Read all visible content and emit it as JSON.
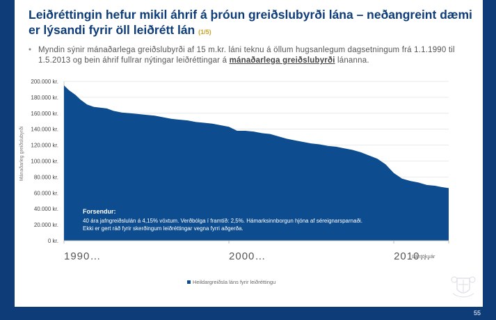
{
  "slide": {
    "title_main": "Leiðréttingin hefur mikil áhrif á þróun greiðslubyrði lána – neðangreint dæmi er lýsandi fyrir öll leiðrétt lán",
    "title_sub": "(1/5)",
    "bullet_symbol": "•",
    "bullet_pre": "Myndin sýnir mánaðarlega greiðslubyrði af 15 m.kr. láni teknu á öllum hugsanlegum dagsetningum frá 1.1.1990 til 1.5.2013 og bein áhrif fullrar nýtingar leiðréttingar á ",
    "bullet_emph": "mánaðarlega greiðslubyrði",
    "bullet_post": " lánanna.",
    "page_number": "55"
  },
  "colors": {
    "brand": "#0d3c78",
    "area": "#0d4d8f",
    "accent": "#c9a227"
  },
  "chart_data": {
    "type": "area",
    "title": "",
    "ylabel": "Mánaðarleg greiðslubyrði",
    "xlabel": "Lántökuár",
    "ylim": [
      0,
      200000
    ],
    "yticks": [
      0,
      20000,
      40000,
      60000,
      80000,
      100000,
      120000,
      140000,
      160000,
      180000,
      200000
    ],
    "ytick_labels": [
      "0 kr.",
      "20.000 kr.",
      "40.000 kr.",
      "60.000 kr.",
      "80.000 kr.",
      "100.000 kr.",
      "120.000 kr.",
      "140.000 kr.",
      "160.000 kr.",
      "180.000 kr.",
      "200.000 kr."
    ],
    "xlim": [
      1990,
      2013.33
    ],
    "xticks": [
      1990,
      2000,
      2010
    ],
    "xtick_labels": [
      "1990…",
      "2000…",
      "2010…"
    ],
    "legend": [
      "Heildargreiðsla láns fyrir leiðréttingu"
    ],
    "series": [
      {
        "name": "Heildargreiðsla láns fyrir leiðréttingu",
        "x": [
          1990.0,
          1990.3,
          1990.7,
          1991.0,
          1991.4,
          1991.8,
          1992.2,
          1992.6,
          1993.0,
          1993.5,
          1994.0,
          1994.5,
          1995.0,
          1995.5,
          1996.0,
          1996.5,
          1997.0,
          1997.5,
          1998.0,
          1998.5,
          1999.0,
          1999.5,
          2000.0,
          2000.5,
          2001.0,
          2001.5,
          2002.0,
          2002.5,
          2003.0,
          2003.5,
          2004.0,
          2004.5,
          2005.0,
          2005.5,
          2006.0,
          2006.5,
          2007.0,
          2007.5,
          2008.0,
          2008.5,
          2009.0,
          2009.5,
          2010.0,
          2010.5,
          2011.0,
          2011.5,
          2012.0,
          2012.5,
          2013.0,
          2013.33
        ],
        "values": [
          195000,
          189000,
          183000,
          177000,
          171000,
          168000,
          167000,
          166000,
          163000,
          161000,
          160000,
          159000,
          158000,
          157000,
          155000,
          153000,
          152000,
          151000,
          149000,
          148000,
          147000,
          145000,
          143000,
          138000,
          138000,
          137000,
          135000,
          134000,
          131000,
          128000,
          126000,
          124000,
          122000,
          121000,
          119000,
          118000,
          116000,
          114000,
          111000,
          107000,
          103000,
          96000,
          85000,
          78000,
          75000,
          73000,
          70000,
          69000,
          67000,
          66000
        ]
      }
    ],
    "annotation": {
      "title": "Forsendur:",
      "lines": [
        "40 ára jafngreiðslulán á 4,15% vöxtum. Verðbólga í framtíð: 2,5%.  Hámarksinnborgun hjóna af séreignarsparnaði.",
        "Ekki er gert ráð fyrir skerðingum leiðréttingar vegna fyrri aðgerða."
      ]
    }
  }
}
